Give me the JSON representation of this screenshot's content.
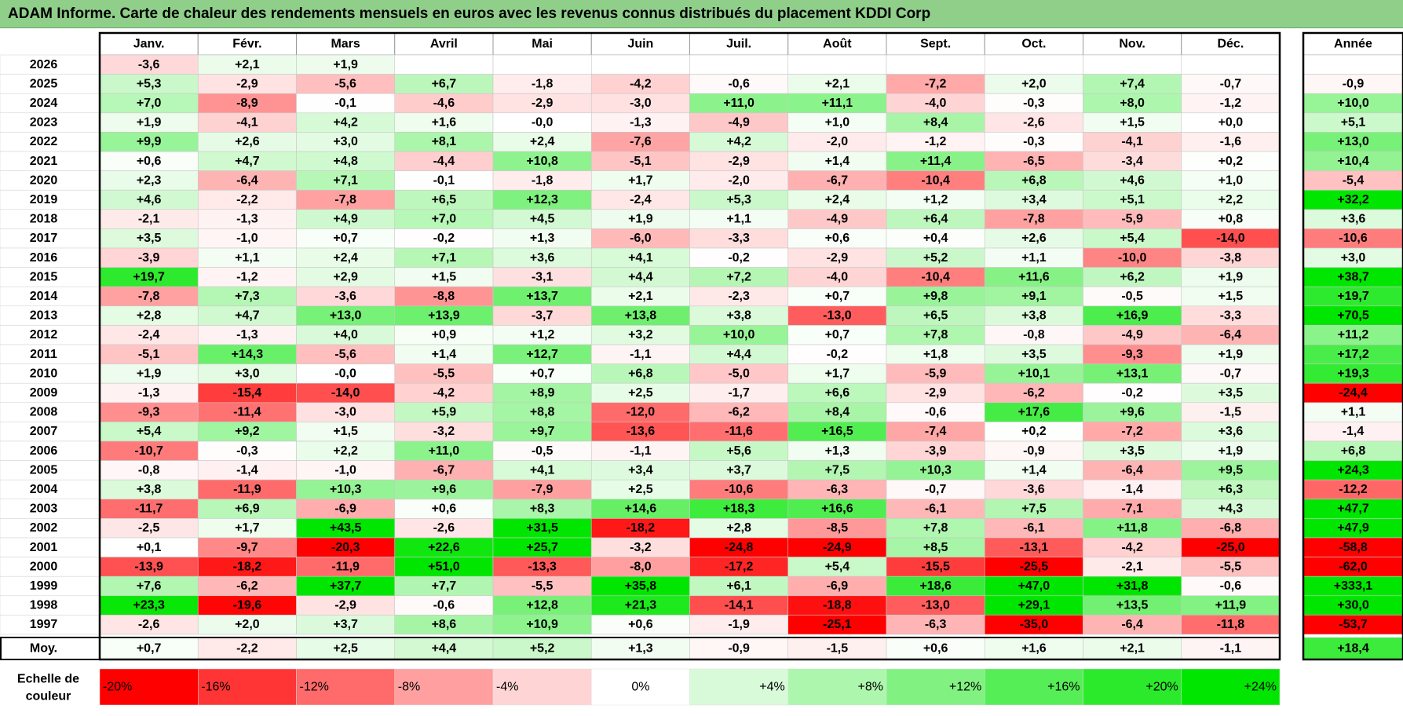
{
  "title": "ADAM Informe. Carte de chaleur des rendements mensuels en euros avec les revenus connus distribués du placement KDDI Corp",
  "colors": {
    "title_bg": "#8fcf8a",
    "positive_max": "#00e000",
    "negative_max": "#ff0000",
    "neutral": "#ffffff"
  },
  "chart_data": {
    "type": "heatmap",
    "title": "ADAM Informe. Carte de chaleur des rendements mensuels en euros avec les revenus connus distribués du placement KDDI Corp",
    "months": [
      "Janv.",
      "Févr.",
      "Mars",
      "Avril",
      "Mai",
      "Juin",
      "Juil.",
      "Août",
      "Sept.",
      "Oct.",
      "Nov.",
      "Déc."
    ],
    "year_header": "Année",
    "rows": [
      {
        "year": "2026",
        "values": [
          "-3,6",
          "+2,1",
          "+1,9",
          "",
          "",
          "",
          "",
          "",
          "",
          "",
          "",
          ""
        ],
        "annual": ""
      },
      {
        "year": "2025",
        "values": [
          "+5,3",
          "-2,9",
          "-5,6",
          "+6,7",
          "-1,8",
          "-4,2",
          "-0,6",
          "+2,1",
          "-7,2",
          "+2,0",
          "+7,4",
          "-0,7"
        ],
        "annual": "-0,9"
      },
      {
        "year": "2024",
        "values": [
          "+7,0",
          "-8,9",
          "-0,1",
          "-4,6",
          "-2,9",
          "-3,0",
          "+11,0",
          "+11,1",
          "-4,0",
          "-0,3",
          "+8,0",
          "-1,2"
        ],
        "annual": "+10,0"
      },
      {
        "year": "2023",
        "values": [
          "+1,9",
          "-4,1",
          "+4,2",
          "+1,6",
          "-0,0",
          "-1,3",
          "-4,9",
          "+1,0",
          "+8,4",
          "-2,6",
          "+1,5",
          "+0,0"
        ],
        "annual": "+5,1"
      },
      {
        "year": "2022",
        "values": [
          "+9,9",
          "+2,6",
          "+3,0",
          "+8,1",
          "+2,4",
          "-7,6",
          "+4,2",
          "-2,0",
          "-1,2",
          "-0,3",
          "-4,1",
          "-1,6"
        ],
        "annual": "+13,0"
      },
      {
        "year": "2021",
        "values": [
          "+0,6",
          "+4,7",
          "+4,8",
          "-4,4",
          "+10,8",
          "-5,1",
          "-2,9",
          "+1,4",
          "+11,4",
          "-6,5",
          "-3,4",
          "+0,2"
        ],
        "annual": "+10,4"
      },
      {
        "year": "2020",
        "values": [
          "+2,3",
          "-6,4",
          "+7,1",
          "-0,1",
          "-1,8",
          "+1,7",
          "-2,0",
          "-6,7",
          "-10,4",
          "+6,8",
          "+4,6",
          "+1,0"
        ],
        "annual": "-5,4"
      },
      {
        "year": "2019",
        "values": [
          "+4,6",
          "-2,2",
          "-7,8",
          "+6,5",
          "+12,3",
          "-2,4",
          "+5,3",
          "+2,4",
          "+1,2",
          "+3,4",
          "+5,1",
          "+2,2"
        ],
        "annual": "+32,2"
      },
      {
        "year": "2018",
        "values": [
          "-2,1",
          "-1,3",
          "+4,9",
          "+7,0",
          "+4,5",
          "+1,9",
          "+1,1",
          "-4,9",
          "+6,4",
          "-7,8",
          "-5,9",
          "+0,8"
        ],
        "annual": "+3,6"
      },
      {
        "year": "2017",
        "values": [
          "+3,5",
          "-1,0",
          "+0,7",
          "-0,2",
          "+1,3",
          "-6,0",
          "-3,3",
          "+0,6",
          "+0,4",
          "+2,6",
          "+5,4",
          "-14,0"
        ],
        "annual": "-10,6"
      },
      {
        "year": "2016",
        "values": [
          "-3,9",
          "+1,1",
          "+2,4",
          "+7,1",
          "+3,6",
          "+4,1",
          "-0,2",
          "-2,9",
          "+5,2",
          "+1,1",
          "-10,0",
          "-3,8"
        ],
        "annual": "+3,0"
      },
      {
        "year": "2015",
        "values": [
          "+19,7",
          "-1,2",
          "+2,9",
          "+1,5",
          "-3,1",
          "+4,4",
          "+7,2",
          "-4,0",
          "-10,4",
          "+11,6",
          "+6,2",
          "+1,9"
        ],
        "annual": "+38,7"
      },
      {
        "year": "2014",
        "values": [
          "-7,8",
          "+7,3",
          "-3,6",
          "-8,8",
          "+13,7",
          "+2,1",
          "-2,3",
          "+0,7",
          "+9,8",
          "+9,1",
          "-0,5",
          "+1,5"
        ],
        "annual": "+19,7"
      },
      {
        "year": "2013",
        "values": [
          "+2,8",
          "+4,7",
          "+13,0",
          "+13,9",
          "-3,7",
          "+13,8",
          "+3,8",
          "-13,0",
          "+6,5",
          "+3,8",
          "+16,9",
          "-3,3"
        ],
        "annual": "+70,5"
      },
      {
        "year": "2012",
        "values": [
          "-2,4",
          "-1,3",
          "+4,0",
          "+0,9",
          "+1,2",
          "+3,2",
          "+10,0",
          "+0,7",
          "+7,8",
          "-0,8",
          "-4,9",
          "-6,4"
        ],
        "annual": "+11,2"
      },
      {
        "year": "2011",
        "values": [
          "-5,1",
          "+14,3",
          "-5,6",
          "+1,4",
          "+12,7",
          "-1,1",
          "+4,4",
          "-0,2",
          "+1,8",
          "+3,5",
          "-9,3",
          "+1,9"
        ],
        "annual": "+17,2"
      },
      {
        "year": "2010",
        "values": [
          "+1,9",
          "+3,0",
          "-0,0",
          "-5,5",
          "+0,7",
          "+6,8",
          "-5,0",
          "+1,7",
          "-5,9",
          "+10,1",
          "+13,1",
          "-0,7"
        ],
        "annual": "+19,3"
      },
      {
        "year": "2009",
        "values": [
          "-1,3",
          "-15,4",
          "-14,0",
          "-4,2",
          "+8,9",
          "+2,5",
          "-1,7",
          "+6,6",
          "-2,9",
          "-6,2",
          "-0,2",
          "+3,5"
        ],
        "annual": "-24,4"
      },
      {
        "year": "2008",
        "values": [
          "-9,3",
          "-11,4",
          "-3,0",
          "+5,9",
          "+8,8",
          "-12,0",
          "-6,2",
          "+8,4",
          "-0,6",
          "+17,6",
          "+9,6",
          "-1,5"
        ],
        "annual": "+1,1"
      },
      {
        "year": "2007",
        "values": [
          "+5,4",
          "+9,2",
          "+1,5",
          "-3,2",
          "+9,7",
          "-13,6",
          "-11,6",
          "+16,5",
          "-7,4",
          "+0,2",
          "-7,2",
          "+3,6"
        ],
        "annual": "-1,4"
      },
      {
        "year": "2006",
        "values": [
          "-10,7",
          "-0,3",
          "+2,2",
          "+11,0",
          "-0,5",
          "-1,1",
          "+5,6",
          "+1,3",
          "-3,9",
          "-0,9",
          "+3,5",
          "+1,9"
        ],
        "annual": "+6,8"
      },
      {
        "year": "2005",
        "values": [
          "-0,8",
          "-1,4",
          "-1,0",
          "-6,7",
          "+4,1",
          "+3,4",
          "+3,7",
          "+7,5",
          "+10,3",
          "+1,4",
          "-6,4",
          "+9,5"
        ],
        "annual": "+24,3"
      },
      {
        "year": "2004",
        "values": [
          "+3,8",
          "-11,9",
          "+10,3",
          "+9,6",
          "-7,9",
          "+2,5",
          "-10,6",
          "-6,3",
          "-0,7",
          "-3,6",
          "-1,4",
          "+6,3"
        ],
        "annual": "-12,2"
      },
      {
        "year": "2003",
        "values": [
          "-11,7",
          "+6,9",
          "-6,9",
          "+0,6",
          "+8,3",
          "+14,6",
          "+18,3",
          "+16,6",
          "-6,1",
          "+7,5",
          "-7,1",
          "+4,3"
        ],
        "annual": "+47,7"
      },
      {
        "year": "2002",
        "values": [
          "-2,5",
          "+1,7",
          "+43,5",
          "-2,6",
          "+31,5",
          "-18,2",
          "+2,8",
          "-8,5",
          "+7,8",
          "-6,1",
          "+11,8",
          "-6,8"
        ],
        "annual": "+47,9"
      },
      {
        "year": "2001",
        "values": [
          "+0,1",
          "-9,7",
          "-20,3",
          "+22,6",
          "+25,7",
          "-3,2",
          "-24,8",
          "-24,9",
          "+8,5",
          "-13,1",
          "-4,2",
          "-25,0"
        ],
        "annual": "-58,8"
      },
      {
        "year": "2000",
        "values": [
          "-13,9",
          "-18,2",
          "-11,9",
          "+51,0",
          "-13,3",
          "-8,0",
          "-17,2",
          "+5,4",
          "-15,5",
          "-25,5",
          "-2,1",
          "-5,5"
        ],
        "annual": "-62,0"
      },
      {
        "year": "1999",
        "values": [
          "+7,6",
          "-6,2",
          "+37,7",
          "+7,7",
          "-5,5",
          "+35,8",
          "+6,1",
          "-6,9",
          "+18,6",
          "+47,0",
          "+31,8",
          "-0,6"
        ],
        "annual": "+333,1"
      },
      {
        "year": "1998",
        "values": [
          "+23,3",
          "-19,6",
          "-2,9",
          "-0,6",
          "+12,8",
          "+21,3",
          "-14,1",
          "-18,8",
          "-13,0",
          "+29,1",
          "+13,5",
          "+11,9"
        ],
        "annual": "+30,0"
      },
      {
        "year": "1997",
        "values": [
          "-2,6",
          "+2,0",
          "+3,7",
          "+8,6",
          "+10,9",
          "+0,6",
          "-1,9",
          "-25,1",
          "-6,3",
          "-35,0",
          "-6,4",
          "-11,8"
        ],
        "annual": "-53,7"
      }
    ],
    "average_label": "Moy.",
    "averages": [
      "+0,7",
      "-2,2",
      "+2,5",
      "+4,4",
      "+5,2",
      "+1,3",
      "-0,9",
      "-1,5",
      "+0,6",
      "+1,6",
      "+2,1",
      "-1,1"
    ],
    "average_annual": "+18,4",
    "scale_label_line1": "Echelle de",
    "scale_label_line2": "couleur",
    "scale": [
      {
        "label": "-20%",
        "value": -20
      },
      {
        "label": "-16%",
        "value": -16
      },
      {
        "label": "-12%",
        "value": -12
      },
      {
        "label": "-8%",
        "value": -8
      },
      {
        "label": "-4%",
        "value": -4
      },
      {
        "label": "0%",
        "value": 0
      },
      {
        "label": "+4%",
        "value": 4
      },
      {
        "label": "+8%",
        "value": 8
      },
      {
        "label": "+12%",
        "value": 12
      },
      {
        "label": "+16%",
        "value": 16
      },
      {
        "label": "+20%",
        "value": 20
      },
      {
        "label": "+24%",
        "value": 24
      }
    ]
  }
}
